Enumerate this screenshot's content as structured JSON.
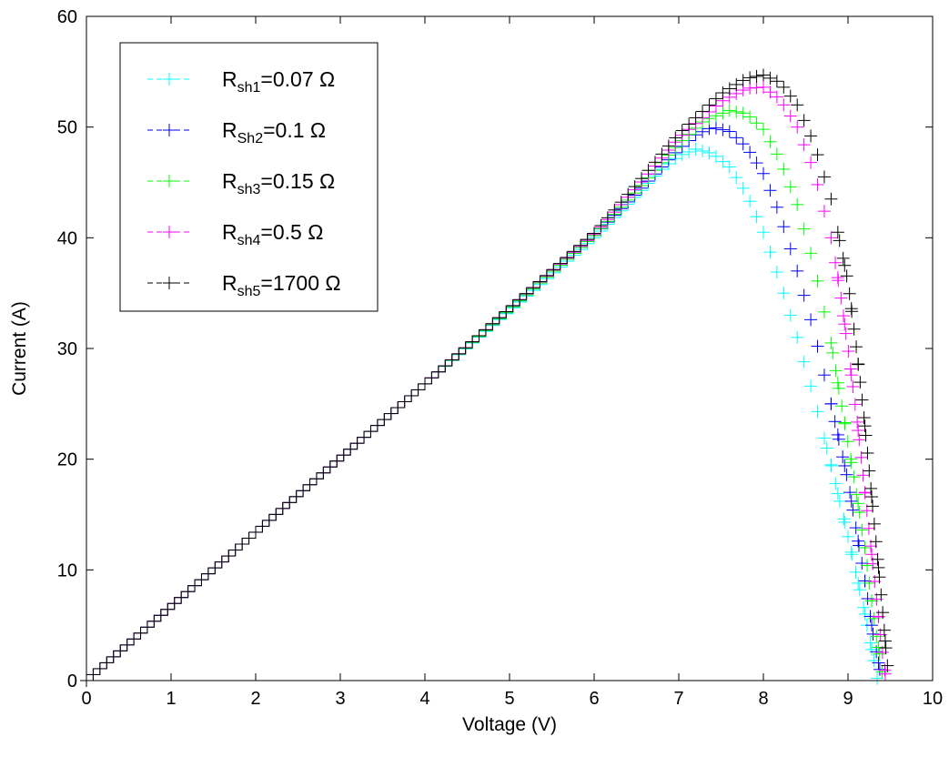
{
  "chart_data": {
    "type": "scatter",
    "xlabel": "Voltage (V)",
    "ylabel": "Current (A)",
    "xlim": [
      0,
      10
    ],
    "ylim": [
      0,
      60
    ],
    "xticks": [
      "0",
      "1",
      "2",
      "3",
      "4",
      "5",
      "6",
      "7",
      "8",
      "9",
      "10"
    ],
    "yticks": [
      "0",
      "10",
      "20",
      "30",
      "40",
      "50",
      "60"
    ],
    "grid": false,
    "legend_position": "top-left",
    "marker": "plus",
    "series": [
      {
        "label_main": "R",
        "label_sub": "sh1",
        "label_rest": "=0.07 Ω",
        "color": "#00ffff",
        "points": [
          [
            0,
            0
          ],
          [
            1,
            6.7
          ],
          [
            2,
            13.4
          ],
          [
            3,
            20.1
          ],
          [
            4,
            26.8
          ],
          [
            5,
            33.4
          ],
          [
            6,
            40.0
          ],
          [
            6.5,
            43.8
          ],
          [
            6.8,
            46.2
          ],
          [
            7.0,
            47.4
          ],
          [
            7.2,
            48.0
          ],
          [
            7.4,
            47.6
          ],
          [
            7.6,
            46.4
          ],
          [
            7.8,
            44.0
          ],
          [
            8.0,
            40.5
          ],
          [
            8.2,
            36.0
          ],
          [
            8.4,
            31.0
          ],
          [
            8.6,
            25.5
          ],
          [
            8.8,
            19.5
          ],
          [
            9.0,
            13.0
          ],
          [
            9.1,
            9.5
          ],
          [
            9.2,
            6.0
          ],
          [
            9.3,
            2.0
          ],
          [
            9.35,
            0
          ]
        ]
      },
      {
        "label_main": "R",
        "label_sub": "Sh2",
        "label_rest": "=0.1 Ω",
        "color": "#0000ff",
        "points": [
          [
            0,
            0
          ],
          [
            1,
            6.7
          ],
          [
            2,
            13.4
          ],
          [
            3,
            20.1
          ],
          [
            4,
            26.8
          ],
          [
            5,
            33.5
          ],
          [
            6,
            40.2
          ],
          [
            6.5,
            44.0
          ],
          [
            7.0,
            48.0
          ],
          [
            7.2,
            49.3
          ],
          [
            7.4,
            50.0
          ],
          [
            7.6,
            49.6
          ],
          [
            7.8,
            48.2
          ],
          [
            8.0,
            45.8
          ],
          [
            8.2,
            42.0
          ],
          [
            8.4,
            37.0
          ],
          [
            8.6,
            31.5
          ],
          [
            8.8,
            25.0
          ],
          [
            9.0,
            18.0
          ],
          [
            9.1,
            13.5
          ],
          [
            9.2,
            9.0
          ],
          [
            9.3,
            4.0
          ],
          [
            9.4,
            0
          ]
        ]
      },
      {
        "label_main": "R",
        "label_sub": "sh3",
        "label_rest": "=0.15 Ω",
        "color": "#00ff00",
        "points": [
          [
            0,
            0
          ],
          [
            1,
            6.7
          ],
          [
            2,
            13.4
          ],
          [
            3,
            20.1
          ],
          [
            4,
            26.8
          ],
          [
            5,
            33.5
          ],
          [
            6,
            40.2
          ],
          [
            6.5,
            44.2
          ],
          [
            7.0,
            48.5
          ],
          [
            7.3,
            50.6
          ],
          [
            7.6,
            51.5
          ],
          [
            7.8,
            51.2
          ],
          [
            8.0,
            49.8
          ],
          [
            8.2,
            47.0
          ],
          [
            8.4,
            43.0
          ],
          [
            8.6,
            37.5
          ],
          [
            8.8,
            30.5
          ],
          [
            8.9,
            26.0
          ],
          [
            9.0,
            21.5
          ],
          [
            9.1,
            17.0
          ],
          [
            9.2,
            12.0
          ],
          [
            9.3,
            6.0
          ],
          [
            9.4,
            1.0
          ],
          [
            9.42,
            0
          ]
        ]
      },
      {
        "label_main": "R",
        "label_sub": "sh4",
        "label_rest": "=0.5 Ω",
        "color": "#ff00ff",
        "points": [
          [
            0,
            0
          ],
          [
            1,
            6.7
          ],
          [
            2,
            13.4
          ],
          [
            3,
            20.1
          ],
          [
            4,
            26.8
          ],
          [
            5,
            33.6
          ],
          [
            6,
            40.3
          ],
          [
            6.5,
            44.5
          ],
          [
            7.0,
            49.0
          ],
          [
            7.5,
            52.3
          ],
          [
            7.8,
            53.5
          ],
          [
            8.0,
            53.6
          ],
          [
            8.2,
            52.5
          ],
          [
            8.4,
            50.0
          ],
          [
            8.6,
            46.0
          ],
          [
            8.8,
            40.0
          ],
          [
            8.9,
            35.5
          ],
          [
            9.0,
            30.0
          ],
          [
            9.1,
            24.0
          ],
          [
            9.2,
            17.0
          ],
          [
            9.3,
            10.0
          ],
          [
            9.4,
            3.0
          ],
          [
            9.45,
            0
          ]
        ]
      },
      {
        "label_main": "R",
        "label_sub": "sh5",
        "label_rest": "=1700 Ω",
        "color": "#000000",
        "points": [
          [
            0,
            0
          ],
          [
            1,
            6.7
          ],
          [
            2,
            13.4
          ],
          [
            3,
            20.1
          ],
          [
            4,
            26.8
          ],
          [
            5,
            33.6
          ],
          [
            6,
            40.4
          ],
          [
            6.5,
            44.8
          ],
          [
            7.0,
            49.4
          ],
          [
            7.5,
            53.0
          ],
          [
            7.8,
            54.4
          ],
          [
            8.0,
            54.7
          ],
          [
            8.2,
            54.0
          ],
          [
            8.4,
            52.0
          ],
          [
            8.6,
            48.5
          ],
          [
            8.8,
            43.5
          ],
          [
            9.0,
            36.0
          ],
          [
            9.1,
            30.0
          ],
          [
            9.2,
            23.0
          ],
          [
            9.3,
            15.0
          ],
          [
            9.4,
            7.0
          ],
          [
            9.47,
            1.0
          ],
          [
            9.5,
            0
          ]
        ]
      }
    ]
  }
}
